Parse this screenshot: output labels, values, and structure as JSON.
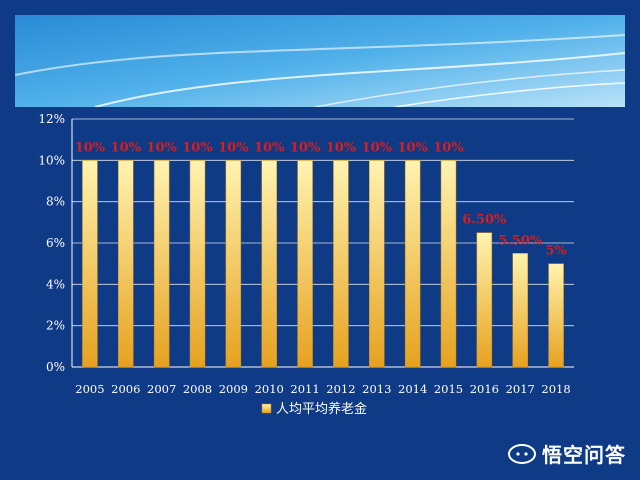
{
  "colors": {
    "background": "#0f3a86",
    "bar_top": "#fff3b0",
    "bar_bottom": "#e6a21f",
    "data_label": "#d81e1e",
    "axis_text": "#ffffff"
  },
  "watermark": {
    "text": "悟空问答",
    "icon": "cloud-logo-icon"
  },
  "chart_data": {
    "type": "bar",
    "categories": [
      "2005",
      "2006",
      "2007",
      "2008",
      "2009",
      "2010",
      "2011",
      "2012",
      "2013",
      "2014",
      "2015",
      "2016",
      "2017",
      "2018"
    ],
    "series": [
      {
        "name": "人均平均养老金",
        "values": [
          10,
          10,
          10,
          10,
          10,
          10,
          10,
          10,
          10,
          10,
          10,
          6.5,
          5.5,
          5
        ],
        "labels": [
          "10%",
          "10%",
          "10%",
          "10%",
          "10%",
          "10%",
          "10%",
          "10%",
          "10%",
          "10%",
          "10%",
          "6.50%",
          "5.50%",
          "5%"
        ]
      }
    ],
    "ylim": [
      0,
      12
    ],
    "yticks": [
      0,
      2,
      4,
      6,
      8,
      10,
      12
    ],
    "ytick_labels": [
      "0%",
      "2%",
      "4%",
      "6%",
      "8%",
      "10%",
      "12%"
    ],
    "grid": true,
    "legend_position": "bottom-center"
  }
}
